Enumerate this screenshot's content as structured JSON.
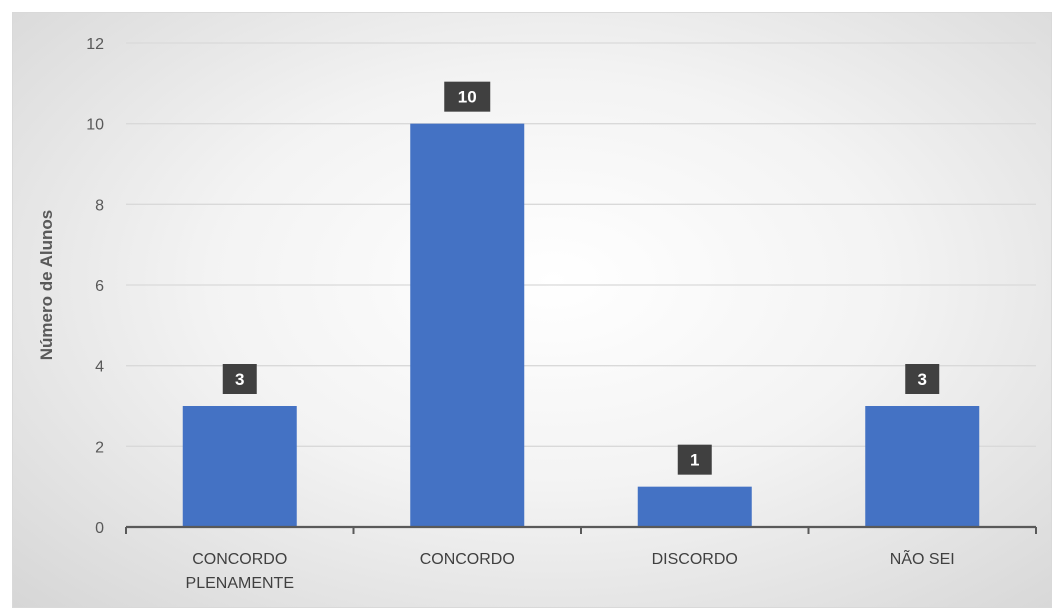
{
  "chart_data": {
    "type": "bar",
    "categories": [
      [
        "CONCORDO",
        "PLENAMENTE"
      ],
      [
        "CONCORDO"
      ],
      [
        "DISCORDO"
      ],
      [
        "NÃO SEI"
      ]
    ],
    "values": [
      3,
      10,
      1,
      3
    ],
    "data_labels": [
      "3",
      "10",
      "1",
      "3"
    ],
    "title": "",
    "xlabel": "",
    "ylabel": "Número de Alunos",
    "ylim": [
      0,
      12
    ],
    "yticks": [
      "0",
      "2",
      "4",
      "6",
      "8",
      "10",
      "12"
    ],
    "grid": true,
    "legend": "none",
    "bar_color": "#4472c4",
    "label_box_color": "#404040",
    "gridline_color": "#d9d9d9",
    "axis_color": "#595959"
  }
}
